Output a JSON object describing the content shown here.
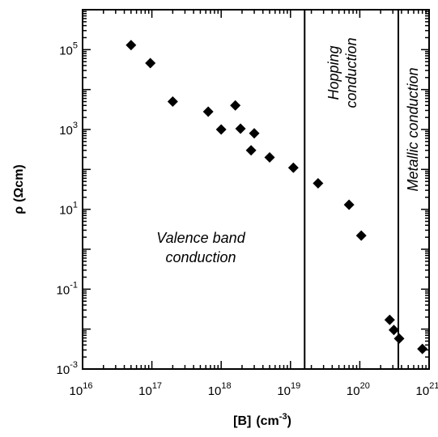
{
  "chart_data": {
    "type": "scatter",
    "xlabel_main": "[B]",
    "xlabel_unit_base": "(cm",
    "xlabel_unit_exp": "-3",
    "xlabel_unit_close": ")",
    "ylabel_symbol": "ρ",
    "ylabel_unit": "(Ωcm)",
    "xscale": "log",
    "yscale": "log",
    "xlim": [
      1e+16,
      1e+21
    ],
    "ylim": [
      0.001,
      1000000
    ],
    "x_ticks": [
      {
        "base": "10",
        "exp": "16"
      },
      {
        "base": "10",
        "exp": "17"
      },
      {
        "base": "10",
        "exp": "18"
      },
      {
        "base": "10",
        "exp": "19"
      },
      {
        "base": "10",
        "exp": "20"
      },
      {
        "base": "10",
        "exp": "21"
      }
    ],
    "y_ticks": [
      {
        "base": "10",
        "exp": "-3"
      },
      {
        "base": "10",
        "exp": "-1"
      },
      {
        "base": "10",
        "exp": "1"
      },
      {
        "base": "10",
        "exp": "3"
      },
      {
        "base": "10",
        "exp": "5"
      }
    ],
    "boundaries": [
      1.6e+19,
      3.6e+20
    ],
    "regions": [
      {
        "lines": [
          "Valence band",
          "conduction"
        ]
      },
      {
        "lines": [
          "Hopping",
          "conduction"
        ]
      },
      {
        "lines": [
          "Metallic conduction"
        ]
      }
    ],
    "points": [
      {
        "x": 5e+16,
        "y": 130000
      },
      {
        "x": 9.5e+16,
        "y": 46000
      },
      {
        "x": 2e+17,
        "y": 5000
      },
      {
        "x": 6.5e+17,
        "y": 2800
      },
      {
        "x": 1e+18,
        "y": 1000
      },
      {
        "x": 1.6e+18,
        "y": 4000
      },
      {
        "x": 1.9e+18,
        "y": 1050
      },
      {
        "x": 2.7e+18,
        "y": 300
      },
      {
        "x": 3e+18,
        "y": 800
      },
      {
        "x": 5e+18,
        "y": 200
      },
      {
        "x": 1.1e+19,
        "y": 110
      },
      {
        "x": 2.5e+19,
        "y": 45
      },
      {
        "x": 7e+19,
        "y": 13
      },
      {
        "x": 1.05e+20,
        "y": 2.2
      },
      {
        "x": 2.7e+20,
        "y": 0.017
      },
      {
        "x": 3.1e+20,
        "y": 0.0095
      },
      {
        "x": 3.7e+20,
        "y": 0.0058
      },
      {
        "x": 8e+20,
        "y": 0.0032
      }
    ]
  }
}
